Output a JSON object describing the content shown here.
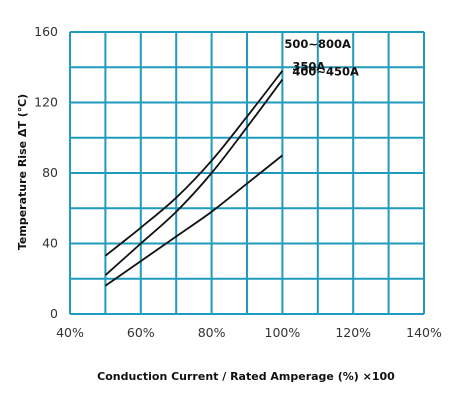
{
  "chart_data": {
    "type": "line",
    "xlabel": "Conduction Current / Rated Amperage (%) ×100",
    "ylabel": "Temperature Rise ΔT (℃)",
    "xlim": [
      40,
      140
    ],
    "ylim": [
      0,
      160
    ],
    "x_ticks": [
      "40%",
      "60%",
      "80%",
      "100%",
      "120%",
      "140%"
    ],
    "x_tick_values": [
      40,
      60,
      80,
      100,
      120,
      140
    ],
    "y_ticks": [
      "0",
      "40",
      "80",
      "120",
      "160"
    ],
    "y_tick_values": [
      0,
      40,
      80,
      120,
      160
    ],
    "grid": true,
    "series": [
      {
        "name": "500~800A",
        "x": [
          50,
          60,
          70,
          80,
          90,
          100
        ],
        "y": [
          33,
          49,
          66,
          87,
          112,
          138
        ]
      },
      {
        "name": "350A",
        "x": [
          50,
          60,
          70,
          80,
          90,
          100
        ],
        "y": [
          22,
          40,
          58,
          80,
          106,
          133
        ]
      },
      {
        "name": "400~450A",
        "x": [
          50,
          60,
          70,
          80,
          90,
          100
        ],
        "y": [
          16,
          30,
          44,
          58,
          74,
          90
        ]
      }
    ],
    "colors": {
      "grid": "#1f9bbd",
      "line": "#111111",
      "frame": "#1f9bbd"
    }
  }
}
